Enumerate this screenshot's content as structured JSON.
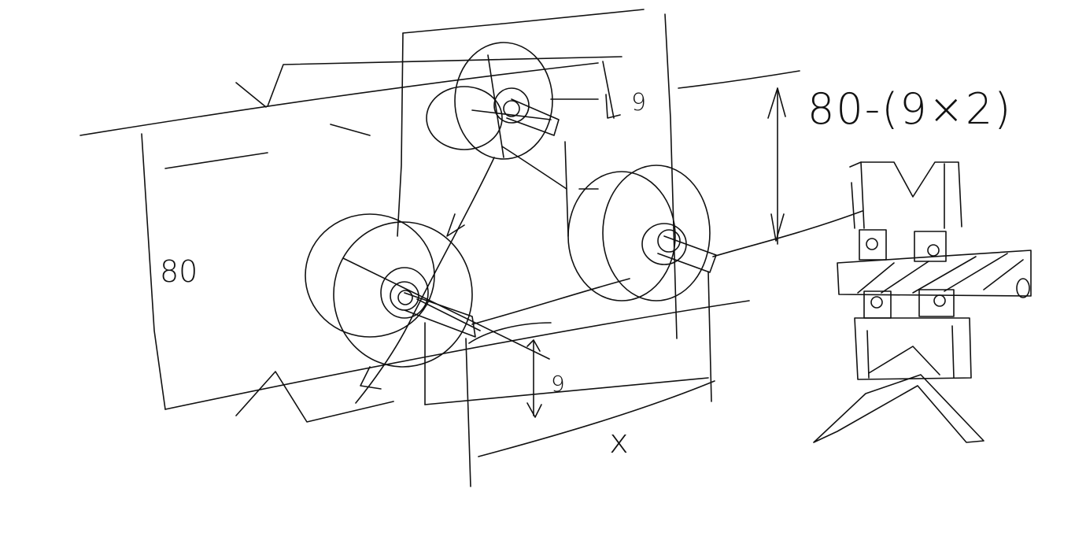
{
  "labels": {
    "height_80": "80",
    "dim_9_top": "9",
    "dim_9_bottom": "9",
    "formula": "80-(9×2)",
    "x_dim": "x"
  }
}
